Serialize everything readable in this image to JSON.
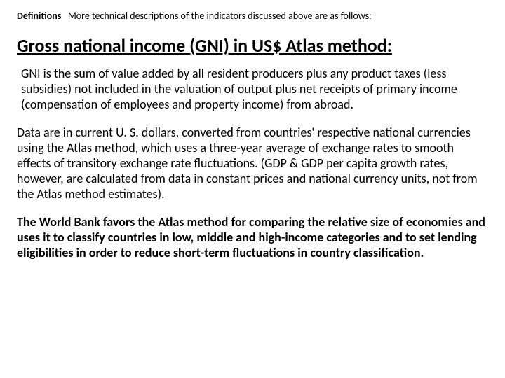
{
  "header": {
    "label": "Definitions",
    "rest": "More technical descriptions of the indicators discussed above are as follows:"
  },
  "title": "Gross national income (GNI) in US$ Atlas method:",
  "paragraphs": {
    "p1": " GNI is the sum of value added by all resident producers plus any product taxes (less subsidies) not included in the valuation of output plus net receipts of primary income (compensation of employees and property income) from abroad.",
    "p2": "Data are in current U. S. dollars, converted from countries' respective national currencies using the Atlas method, which uses a three-year average of exchange rates to smooth effects of transitory exchange rate fluctuations. (GDP & GDP per capita growth rates, however, are calculated from data in constant prices and national currency units, not from the Atlas method estimates).",
    "p3": "The World Bank favors the Atlas method for comparing the relative size of economies and uses it to classify countries in low, middle and high-income categories and to set lending eligibilities in order to reduce short-term fluctuations in country classification."
  }
}
